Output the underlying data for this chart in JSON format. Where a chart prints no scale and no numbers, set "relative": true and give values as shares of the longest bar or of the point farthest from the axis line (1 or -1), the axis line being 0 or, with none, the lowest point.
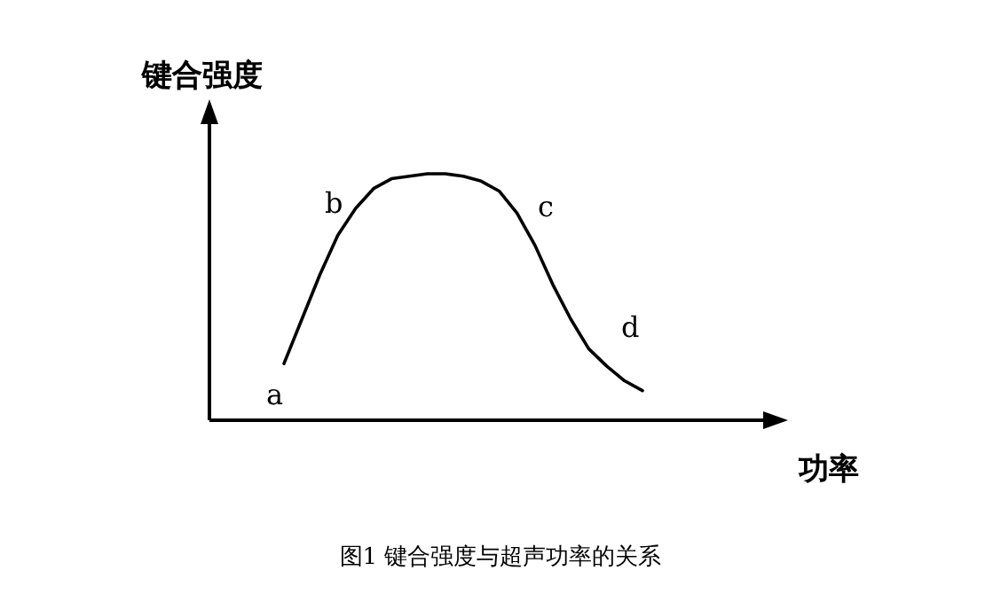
{
  "chart_data": {
    "type": "line",
    "relative": true,
    "ylabel": "键合强度",
    "xlabel": "功率",
    "title": "图1 键合强度与超声功率的关系",
    "categories": [
      null,
      null,
      null,
      null,
      null,
      null,
      null,
      null,
      null,
      null,
      null,
      null,
      null,
      null,
      null,
      null,
      null,
      null,
      null,
      null,
      null
    ],
    "series": [
      {
        "color": "#000000",
        "values": [
          0.23,
          0.41,
          0.59,
          0.75,
          0.86,
          0.94,
          0.98,
          0.99,
          1,
          1,
          0.99,
          0.97,
          0.93,
          0.84,
          0.71,
          0.55,
          0.41,
          0.29,
          0.22,
          0.16,
          0.12
        ]
      }
    ],
    "annotations": [
      "a",
      "b",
      "c",
      "d"
    ]
  }
}
